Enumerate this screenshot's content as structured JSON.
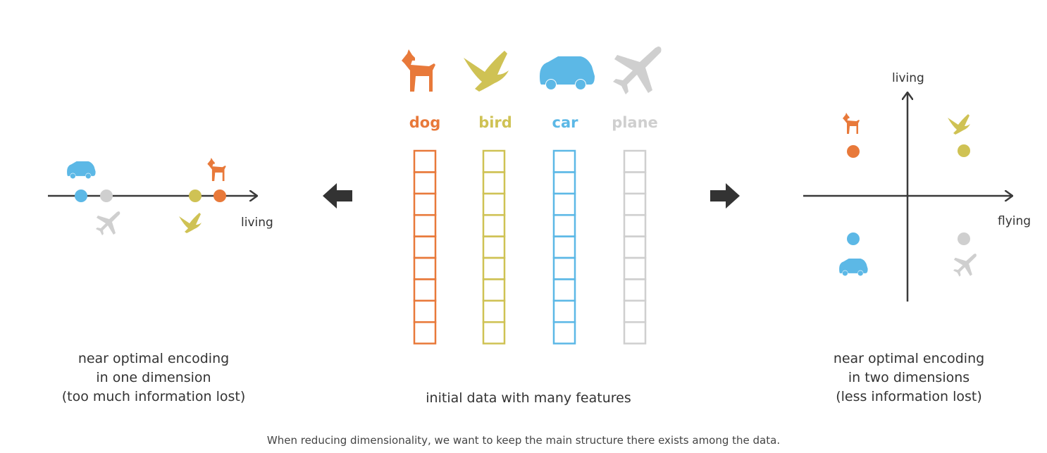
{
  "columns": [
    {
      "label": "dog",
      "color": "#e8793a",
      "icon": "dog-icon"
    },
    {
      "label": "bird",
      "color": "#cfc254",
      "icon": "bird-icon"
    },
    {
      "label": "car",
      "color": "#5cb8e6",
      "icon": "car-icon"
    },
    {
      "label": "plane",
      "color": "#cfcfcf",
      "icon": "plane-icon"
    }
  ],
  "left_panel": {
    "axis_label": "living",
    "text_lines": [
      "near optimal encoding",
      "in one dimension",
      "(too much information lost)"
    ]
  },
  "center_panel": {
    "text": "initial data with many features"
  },
  "right_panel": {
    "y_axis_label": "living",
    "x_axis_label": "flying",
    "text_lines": [
      "near optimal encoding",
      "in two dimensions",
      "(less information lost)"
    ]
  },
  "caption": "When reducing dimensionality, we want to keep the main structure there exists among the data.",
  "colors": {
    "arrow": "#333333",
    "axis": "#3a3a3a"
  }
}
